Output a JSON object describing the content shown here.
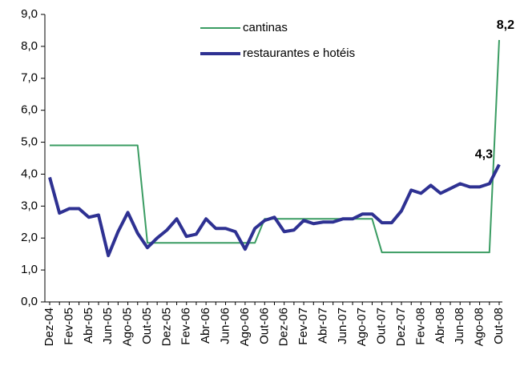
{
  "chart_data": {
    "type": "line",
    "categories": [
      "Dez-04",
      null,
      "Fev-05",
      null,
      "Abr-05",
      null,
      "Jun-05",
      null,
      "Ago-05",
      null,
      "Out-05",
      null,
      "Dez-05",
      null,
      "Fev-06",
      null,
      "Abr-06",
      null,
      "Jun-06",
      null,
      "Ago-06",
      null,
      "Out-06",
      null,
      "Dez-06",
      null,
      "Fev-07",
      null,
      "Abr-07",
      null,
      "Jun-07",
      null,
      "Ago-07",
      null,
      "Out-07",
      null,
      "Dez-07",
      null,
      "Fev-08",
      null,
      "Abr-08",
      null,
      "Jun-08",
      null,
      "Ago-08",
      null,
      "Out-08"
    ],
    "series": [
      {
        "name": "cantinas",
        "color": "#3a9c62",
        "width": 2,
        "values": [
          4.9,
          4.9,
          4.9,
          4.9,
          4.9,
          4.9,
          4.9,
          4.9,
          4.9,
          4.9,
          1.85,
          1.85,
          1.85,
          1.85,
          1.85,
          1.85,
          1.85,
          1.85,
          1.85,
          1.85,
          1.85,
          1.85,
          2.6,
          2.6,
          2.6,
          2.6,
          2.6,
          2.6,
          2.6,
          2.6,
          2.6,
          2.6,
          2.6,
          2.6,
          1.55,
          1.55,
          1.55,
          1.55,
          1.55,
          1.55,
          1.55,
          1.55,
          1.55,
          1.55,
          1.55,
          1.55,
          8.2
        ],
        "value_labels": [
          null,
          null,
          null,
          null,
          null,
          null,
          null,
          null,
          null,
          null,
          null,
          null,
          null,
          null,
          null,
          null,
          null,
          null,
          null,
          null,
          null,
          null,
          null,
          null,
          null,
          null,
          null,
          null,
          null,
          null,
          null,
          null,
          null,
          null,
          null,
          null,
          null,
          null,
          null,
          null,
          null,
          null,
          null,
          null,
          null,
          null,
          "8,2"
        ]
      },
      {
        "name": "restaurantes e hotéis",
        "color": "#2e3192",
        "width": 4,
        "values": [
          3.9,
          2.78,
          2.92,
          2.92,
          2.65,
          2.72,
          1.45,
          2.2,
          2.8,
          2.15,
          1.7,
          2.0,
          2.25,
          2.6,
          2.05,
          2.12,
          2.6,
          2.3,
          2.3,
          2.2,
          1.65,
          2.3,
          2.55,
          2.65,
          2.2,
          2.25,
          2.55,
          2.45,
          2.5,
          2.5,
          2.6,
          2.6,
          2.75,
          2.75,
          2.48,
          2.48,
          2.85,
          3.5,
          3.4,
          3.65,
          3.4,
          3.55,
          3.7,
          3.6,
          3.6,
          3.7,
          4.3
        ],
        "value_labels": [
          null,
          null,
          null,
          null,
          null,
          null,
          null,
          null,
          null,
          null,
          null,
          null,
          null,
          null,
          null,
          null,
          null,
          null,
          null,
          null,
          null,
          null,
          null,
          null,
          null,
          null,
          null,
          null,
          null,
          null,
          null,
          null,
          null,
          null,
          null,
          null,
          null,
          null,
          null,
          null,
          null,
          null,
          null,
          null,
          null,
          null,
          "4,3"
        ]
      }
    ],
    "ylim": [
      0,
      9
    ],
    "yticks": [
      {
        "value": 0,
        "label": "0,0"
      },
      {
        "value": 1,
        "label": "1,0"
      },
      {
        "value": 2,
        "label": "2,0"
      },
      {
        "value": 3,
        "label": "3,0"
      },
      {
        "value": 4,
        "label": "4,0"
      },
      {
        "value": 5,
        "label": "5,0"
      },
      {
        "value": 6,
        "label": "6,0"
      },
      {
        "value": 7,
        "label": "7,0"
      },
      {
        "value": 8,
        "label": "8,0"
      },
      {
        "value": 9,
        "label": "9,0"
      }
    ],
    "grid": false,
    "legend": "top"
  }
}
